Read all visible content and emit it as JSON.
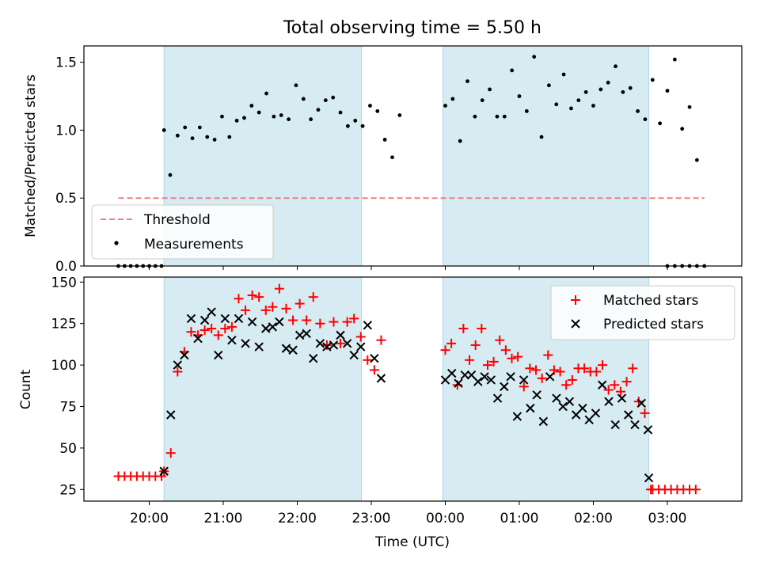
{
  "chart_data": [
    {
      "type": "scatter",
      "panel": "top",
      "title": "Total observing time = 5.50 h",
      "xlabel": "",
      "ylabel": "Matched/Predicted stars",
      "ylim": [
        0,
        1.62
      ],
      "y_ticks": [
        0.0,
        0.5,
        1.0,
        1.5
      ],
      "y_tick_labels": [
        "0.0",
        "0.5",
        "1.0",
        "1.5"
      ],
      "grid": false,
      "legend_position": "lower-left",
      "threshold": {
        "name": "Threshold",
        "value": 0.5,
        "x_range": [
          "19:35",
          "03:30"
        ],
        "color": "#f08080"
      },
      "series": [
        {
          "name": "Measurements",
          "color": "#000000",
          "points": [
            [
              "19:35",
              0.0
            ],
            [
              "19:40",
              0.0
            ],
            [
              "19:45",
              0.0
            ],
            [
              "19:50",
              0.0
            ],
            [
              "19:55",
              0.0
            ],
            [
              "20:00",
              0.0
            ],
            [
              "20:05",
              0.0
            ],
            [
              "20:10",
              0.0
            ],
            [
              "20:12",
              1.0
            ],
            [
              "20:17",
              0.67
            ],
            [
              "20:23",
              0.96
            ],
            [
              "20:29",
              1.02
            ],
            [
              "20:35",
              0.94
            ],
            [
              "20:41",
              1.02
            ],
            [
              "20:47",
              0.95
            ],
            [
              "20:53",
              0.93
            ],
            [
              "20:59",
              1.1
            ],
            [
              "21:05",
              0.95
            ],
            [
              "21:11",
              1.07
            ],
            [
              "21:17",
              1.09
            ],
            [
              "21:23",
              1.18
            ],
            [
              "21:29",
              1.13
            ],
            [
              "21:35",
              1.27
            ],
            [
              "21:41",
              1.1
            ],
            [
              "21:47",
              1.11
            ],
            [
              "21:53",
              1.08
            ],
            [
              "21:59",
              1.33
            ],
            [
              "22:05",
              1.23
            ],
            [
              "22:11",
              1.08
            ],
            [
              "22:17",
              1.15
            ],
            [
              "22:23",
              1.22
            ],
            [
              "22:29",
              1.24
            ],
            [
              "22:35",
              1.13
            ],
            [
              "22:41",
              1.03
            ],
            [
              "22:47",
              1.07
            ],
            [
              "22:53",
              1.03
            ],
            [
              "22:59",
              1.18
            ],
            [
              "23:05",
              1.14
            ],
            [
              "23:11",
              0.93
            ],
            [
              "23:17",
              0.8
            ],
            [
              "23:23",
              1.11
            ],
            [
              "00:00",
              1.18
            ],
            [
              "00:06",
              1.23
            ],
            [
              "00:12",
              0.92
            ],
            [
              "00:18",
              1.36
            ],
            [
              "00:24",
              1.1
            ],
            [
              "00:30",
              1.22
            ],
            [
              "00:36",
              1.3
            ],
            [
              "00:42",
              1.1
            ],
            [
              "00:48",
              1.1
            ],
            [
              "00:54",
              1.44
            ],
            [
              "01:00",
              1.25
            ],
            [
              "01:06",
              1.14
            ],
            [
              "01:12",
              1.54
            ],
            [
              "01:18",
              0.95
            ],
            [
              "01:24",
              1.33
            ],
            [
              "01:30",
              1.19
            ],
            [
              "01:36",
              1.41
            ],
            [
              "01:42",
              1.16
            ],
            [
              "01:48",
              1.22
            ],
            [
              "01:54",
              1.28
            ],
            [
              "02:00",
              1.18
            ],
            [
              "02:06",
              1.3
            ],
            [
              "02:12",
              1.35
            ],
            [
              "02:18",
              1.47
            ],
            [
              "02:24",
              1.28
            ],
            [
              "02:30",
              1.31
            ],
            [
              "02:36",
              1.14
            ],
            [
              "02:42",
              1.08
            ],
            [
              "02:48",
              1.37
            ],
            [
              "02:54",
              1.05
            ],
            [
              "03:00",
              1.29
            ],
            [
              "03:06",
              1.52
            ],
            [
              "03:12",
              1.01
            ],
            [
              "03:18",
              1.17
            ],
            [
              "03:24",
              0.78
            ],
            [
              "03:00",
              0.0
            ],
            [
              "03:06",
              0.0
            ],
            [
              "03:12",
              0.0
            ],
            [
              "03:18",
              0.0
            ],
            [
              "03:24",
              0.0
            ],
            [
              "03:30",
              0.0
            ]
          ]
        }
      ]
    },
    {
      "type": "scatter",
      "panel": "bottom",
      "title": "",
      "xlabel": "Time (UTC)",
      "ylabel": "Count",
      "ylim": [
        18,
        153
      ],
      "y_ticks": [
        25,
        50,
        75,
        100,
        125,
        150
      ],
      "y_tick_labels": [
        "25",
        "50",
        "75",
        "100",
        "125",
        "150"
      ],
      "x_tick_labels": [
        "20:00",
        "21:00",
        "22:00",
        "23:00",
        "00:00",
        "01:00",
        "02:00",
        "03:00"
      ],
      "grid": false,
      "legend_position": "top-right",
      "series": [
        {
          "name": "Matched stars",
          "color": "#ff0000",
          "marker": "plus",
          "values": [
            33,
            33,
            33,
            33,
            33,
            33,
            33,
            33,
            36,
            47,
            96,
            108,
            120,
            118,
            121,
            122,
            118,
            122,
            123,
            140,
            133,
            142,
            141,
            133,
            135,
            146,
            134,
            127,
            137,
            127,
            141,
            125,
            112,
            126,
            113,
            126,
            128,
            117,
            103,
            97,
            115,
            109,
            113,
            88,
            122,
            103,
            112,
            122,
            100,
            102,
            115,
            109,
            104,
            105,
            87,
            98,
            97,
            92,
            106,
            97,
            96,
            88,
            91,
            98,
            98,
            96,
            96,
            100,
            85,
            88,
            84,
            90,
            98,
            78,
            71,
            25,
            25,
            25,
            25,
            25,
            25,
            25,
            25,
            25
          ]
        },
        {
          "name": "Predicted stars",
          "color": "#000000",
          "marker": "x",
          "values": [
            36,
            70,
            100,
            106,
            128,
            116,
            127,
            132,
            106,
            128,
            115,
            128,
            113,
            126,
            111,
            122,
            123,
            126,
            110,
            109,
            118,
            119,
            104,
            113,
            111,
            112,
            118,
            113,
            106,
            111,
            124,
            104,
            92,
            91,
            95,
            89,
            94,
            94,
            90,
            93,
            91,
            80,
            87,
            93,
            69,
            91,
            74,
            82,
            66,
            93,
            80,
            75,
            78,
            70,
            74,
            67,
            71,
            88,
            78,
            64,
            80,
            70,
            64,
            77,
            61,
            32
          ]
        }
      ]
    }
  ],
  "observing_windows": [
    {
      "start": "20:12",
      "end": "22:52"
    },
    {
      "start": "23:58",
      "end": "02:45"
    }
  ]
}
